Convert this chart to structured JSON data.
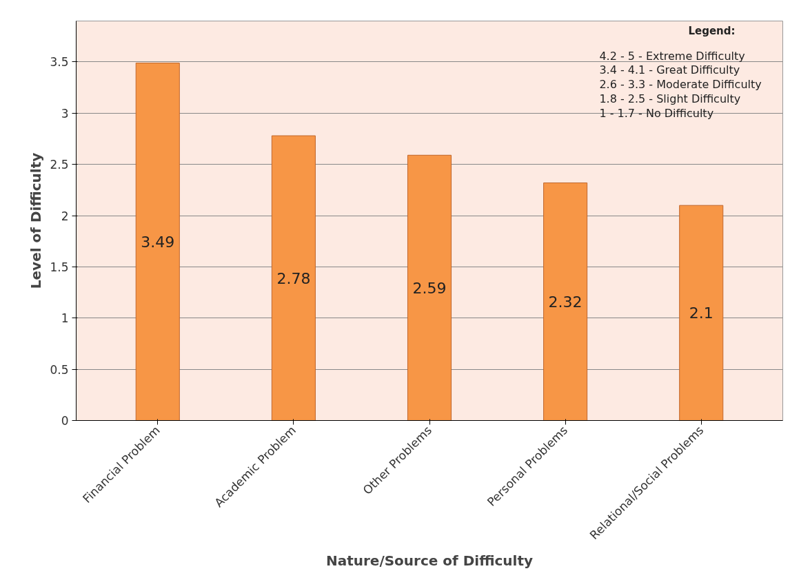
{
  "chart_data": {
    "type": "bar",
    "xlabel": "Nature/Source of Difficulty",
    "ylabel": "Level of Difficulty",
    "categories": [
      "Financial Problem",
      "Academic Problem",
      "Other Problems",
      "Personal Problems",
      "Relational/Social Problems"
    ],
    "values": [
      3.49,
      2.78,
      2.59,
      2.32,
      2.1
    ],
    "color": "#f79646",
    "data_labels": true,
    "ylim": [
      0,
      3.9
    ],
    "yticks": [
      0,
      {
        "value": 0.5,
        "label": "0.5"
      },
      1,
      {
        "value": 1.5,
        "label": "1.5"
      },
      2,
      {
        "value": 2.5,
        "label": "2.5"
      },
      3,
      {
        "value": 3.5,
        "label": "3.5"
      }
    ],
    "grid": "y",
    "annotations": [
      "Legend:",
      "4.2 - 5 - Extreme Difficulty",
      "3.4 - 4.1 - Great Difficulty",
      "2.6 - 3.3 - Moderate Difficulty",
      "1.8 - 2.5 - Slight Difficulty",
      "1 - 1.7 - No Difficulty"
    ]
  }
}
